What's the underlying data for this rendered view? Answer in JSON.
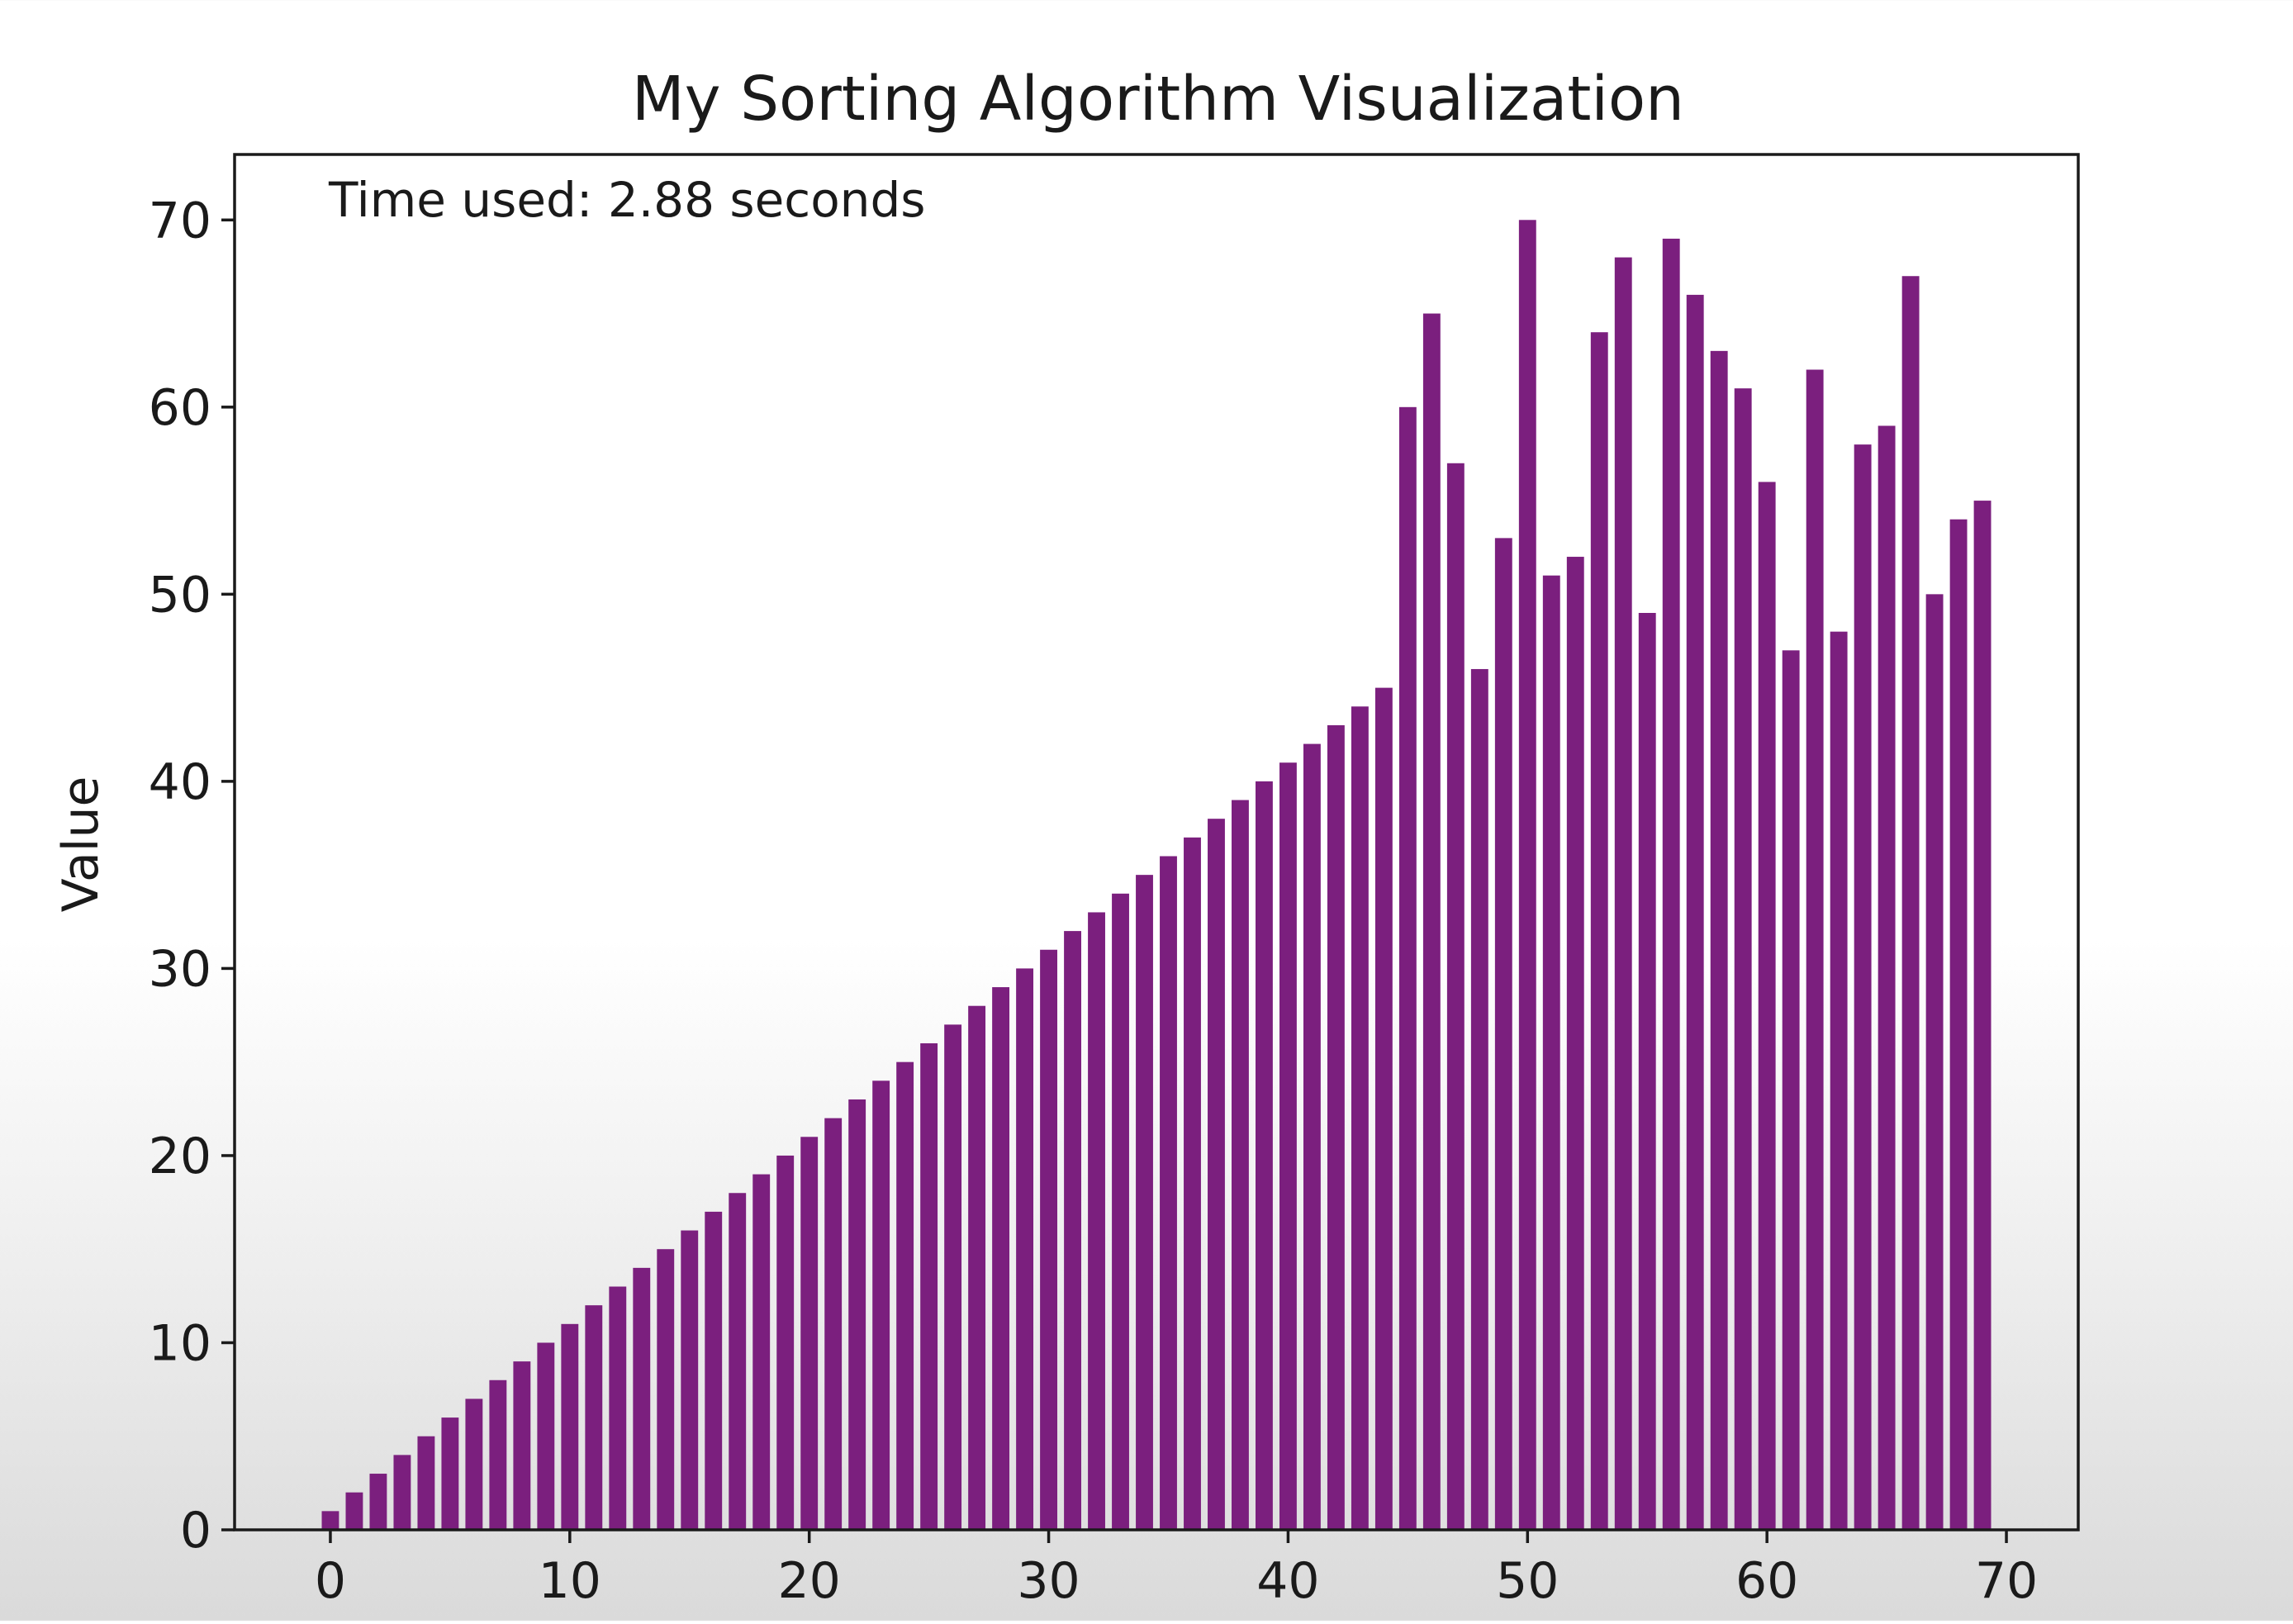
{
  "chart_data": {
    "type": "bar",
    "title": "My Sorting Algorithm Visualization",
    "xlabel": "",
    "ylabel": "Value",
    "annotation": "Time used: 2.88 seconds",
    "bar_color": "#7b1f7e",
    "xlim": [
      -4,
      73
    ],
    "ylim": [
      0,
      73.5
    ],
    "xticks": [
      0,
      10,
      20,
      30,
      40,
      50,
      60,
      70
    ],
    "yticks": [
      0,
      10,
      20,
      30,
      40,
      50,
      60,
      70
    ],
    "grid": false,
    "x": [
      0,
      1,
      2,
      3,
      4,
      5,
      6,
      7,
      8,
      9,
      10,
      11,
      12,
      13,
      14,
      15,
      16,
      17,
      18,
      19,
      20,
      21,
      22,
      23,
      24,
      25,
      26,
      27,
      28,
      29,
      30,
      31,
      32,
      33,
      34,
      35,
      36,
      37,
      38,
      39,
      40,
      41,
      42,
      43,
      44,
      45,
      46,
      47,
      48,
      49,
      50,
      51,
      52,
      53,
      54,
      55,
      56,
      57,
      58,
      59,
      60,
      61,
      62,
      63,
      64,
      65,
      66,
      67,
      68,
      69
    ],
    "values": [
      1,
      2,
      3,
      4,
      5,
      6,
      7,
      8,
      9,
      10,
      11,
      12,
      13,
      14,
      15,
      16,
      17,
      18,
      19,
      20,
      21,
      22,
      23,
      24,
      25,
      26,
      27,
      28,
      29,
      30,
      31,
      32,
      33,
      34,
      35,
      36,
      37,
      38,
      39,
      40,
      41,
      42,
      43,
      44,
      45,
      60,
      65,
      57,
      46,
      53,
      70,
      51,
      52,
      64,
      68,
      49,
      69,
      66,
      63,
      61,
      56,
      47,
      62,
      48,
      58,
      59,
      67,
      50,
      54,
      55
    ]
  }
}
